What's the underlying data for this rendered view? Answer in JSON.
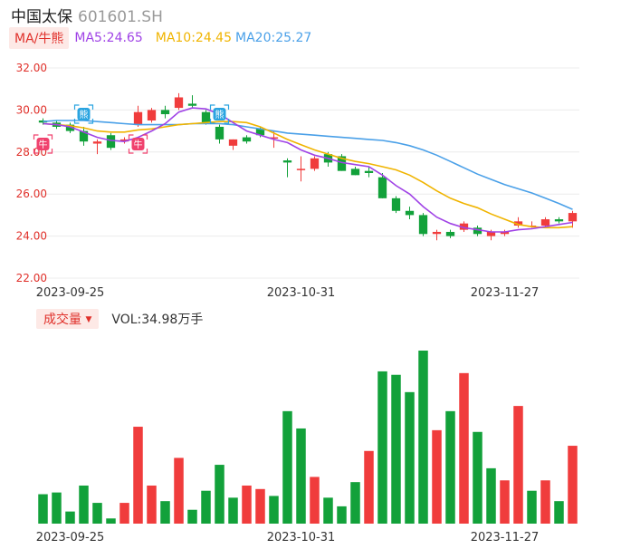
{
  "header": {
    "name": "中国太保",
    "code": "601601.SH"
  },
  "ma_bar": {
    "tag": "MA/牛熊",
    "ma5": "MA5:24.65",
    "ma10": "MA10:24.45",
    "ma20": "MA20:25.27"
  },
  "volume_bar": {
    "tag": "成交量",
    "arrow": "▼",
    "value": "VOL:34.98万手"
  },
  "colors": {
    "up": "#f03c3c",
    "down": "#12a13a",
    "ma5": "#a043e6",
    "ma10": "#f0b400",
    "ma20": "#4aa0e8",
    "grid": "#ececec",
    "axis_label": "#e0302a"
  },
  "chart_data": [
    {
      "type": "candlestick",
      "y_ticks": [
        "32.00",
        "30.00",
        "28.00",
        "26.00",
        "24.00",
        "22.00"
      ],
      "ylim": [
        22,
        32
      ],
      "x_tick_labels": [
        {
          "index": 2,
          "label": "2023-09-25"
        },
        {
          "index": 19,
          "label": "2023-10-31"
        },
        {
          "index": 34,
          "label": "2023-11-27"
        }
      ],
      "markers": [
        {
          "index": 0,
          "label": "牛",
          "type": "bull"
        },
        {
          "index": 3,
          "label": "熊",
          "type": "bear"
        },
        {
          "index": 7,
          "label": "牛",
          "type": "bull"
        },
        {
          "index": 13,
          "label": "熊",
          "type": "bear"
        }
      ],
      "candles": [
        {
          "o": 29.5,
          "h": 29.6,
          "l": 29.3,
          "c": 29.4
        },
        {
          "o": 29.4,
          "h": 29.5,
          "l": 29.1,
          "c": 29.2
        },
        {
          "o": 29.3,
          "h": 29.4,
          "l": 28.9,
          "c": 29.0
        },
        {
          "o": 29.0,
          "h": 29.2,
          "l": 28.3,
          "c": 28.5
        },
        {
          "o": 28.4,
          "h": 28.6,
          "l": 27.9,
          "c": 28.5
        },
        {
          "o": 28.8,
          "h": 28.9,
          "l": 28.1,
          "c": 28.2
        },
        {
          "o": 28.5,
          "h": 28.7,
          "l": 28.4,
          "c": 28.6
        },
        {
          "o": 29.3,
          "h": 30.2,
          "l": 29.2,
          "c": 29.9
        },
        {
          "o": 29.5,
          "h": 30.1,
          "l": 29.4,
          "c": 30.0
        },
        {
          "o": 30.0,
          "h": 30.2,
          "l": 29.6,
          "c": 29.8
        },
        {
          "o": 30.1,
          "h": 30.8,
          "l": 30.0,
          "c": 30.6
        },
        {
          "o": 30.3,
          "h": 30.7,
          "l": 30.1,
          "c": 30.2
        },
        {
          "o": 29.9,
          "h": 30.0,
          "l": 29.3,
          "c": 29.4
        },
        {
          "o": 29.2,
          "h": 29.3,
          "l": 28.4,
          "c": 28.6
        },
        {
          "o": 28.3,
          "h": 28.6,
          "l": 28.1,
          "c": 28.6
        },
        {
          "o": 28.7,
          "h": 28.8,
          "l": 28.4,
          "c": 28.5
        },
        {
          "o": 29.1,
          "h": 29.2,
          "l": 28.7,
          "c": 28.8
        },
        {
          "o": 28.7,
          "h": 29.0,
          "l": 28.2,
          "c": 28.7
        },
        {
          "o": 27.6,
          "h": 27.7,
          "l": 26.8,
          "c": 27.5
        },
        {
          "o": 27.2,
          "h": 27.8,
          "l": 26.6,
          "c": 27.2
        },
        {
          "o": 27.2,
          "h": 27.8,
          "l": 27.1,
          "c": 27.7
        },
        {
          "o": 27.9,
          "h": 28.0,
          "l": 27.3,
          "c": 27.5
        },
        {
          "o": 27.8,
          "h": 27.9,
          "l": 27.1,
          "c": 27.1
        },
        {
          "o": 27.2,
          "h": 27.3,
          "l": 26.9,
          "c": 26.9
        },
        {
          "o": 27.1,
          "h": 27.3,
          "l": 26.8,
          "c": 27.0
        },
        {
          "o": 26.8,
          "h": 27.0,
          "l": 25.8,
          "c": 25.8
        },
        {
          "o": 25.8,
          "h": 25.9,
          "l": 25.1,
          "c": 25.2
        },
        {
          "o": 25.2,
          "h": 25.4,
          "l": 24.8,
          "c": 25.0
        },
        {
          "o": 25.0,
          "h": 25.1,
          "l": 24.0,
          "c": 24.1
        },
        {
          "o": 24.1,
          "h": 24.3,
          "l": 23.8,
          "c": 24.2
        },
        {
          "o": 24.2,
          "h": 24.3,
          "l": 23.9,
          "c": 24.0
        },
        {
          "o": 24.3,
          "h": 24.7,
          "l": 24.2,
          "c": 24.6
        },
        {
          "o": 24.4,
          "h": 24.5,
          "l": 24.0,
          "c": 24.1
        },
        {
          "o": 24.0,
          "h": 24.3,
          "l": 23.8,
          "c": 24.2
        },
        {
          "o": 24.1,
          "h": 24.3,
          "l": 24.0,
          "c": 24.2
        },
        {
          "o": 24.5,
          "h": 24.9,
          "l": 24.4,
          "c": 24.7
        },
        {
          "o": 24.5,
          "h": 24.7,
          "l": 24.4,
          "c": 24.5
        },
        {
          "o": 24.5,
          "h": 24.9,
          "l": 24.4,
          "c": 24.8
        },
        {
          "o": 24.8,
          "h": 24.9,
          "l": 24.6,
          "c": 24.7
        },
        {
          "o": 24.7,
          "h": 25.2,
          "l": 24.4,
          "c": 25.1
        }
      ],
      "ma5": [
        29.35,
        29.3,
        29.2,
        28.95,
        28.7,
        28.55,
        28.5,
        28.7,
        29.0,
        29.35,
        29.9,
        30.1,
        30.05,
        29.8,
        29.4,
        29.0,
        28.8,
        28.6,
        28.45,
        28.1,
        27.85,
        27.7,
        27.5,
        27.4,
        27.3,
        26.9,
        26.4,
        26.0,
        25.4,
        24.9,
        24.6,
        24.4,
        24.3,
        24.2,
        24.2,
        24.3,
        24.35,
        24.45,
        24.55,
        24.65
      ],
      "ma10": [
        29.35,
        29.3,
        29.25,
        29.15,
        29.0,
        28.95,
        28.95,
        29.05,
        29.1,
        29.2,
        29.3,
        29.35,
        29.4,
        29.45,
        29.45,
        29.4,
        29.2,
        28.9,
        28.6,
        28.35,
        28.1,
        27.9,
        27.7,
        27.55,
        27.45,
        27.3,
        27.15,
        26.9,
        26.55,
        26.15,
        25.8,
        25.55,
        25.35,
        25.05,
        24.8,
        24.55,
        24.45,
        24.4,
        24.4,
        24.45
      ],
      "ma20": [
        29.45,
        29.5,
        29.5,
        29.5,
        29.45,
        29.4,
        29.35,
        29.3,
        29.3,
        29.3,
        29.3,
        29.35,
        29.35,
        29.35,
        29.3,
        29.2,
        29.1,
        29.0,
        28.9,
        28.85,
        28.8,
        28.75,
        28.7,
        28.65,
        28.6,
        28.55,
        28.45,
        28.3,
        28.1,
        27.85,
        27.55,
        27.25,
        26.95,
        26.7,
        26.45,
        26.25,
        26.05,
        25.8,
        25.55,
        25.27
      ]
    },
    {
      "type": "bar",
      "name": "成交量",
      "x_tick_labels": [
        {
          "index": 2,
          "label": "2023-09-25"
        },
        {
          "index": 19,
          "label": "2023-10-31"
        },
        {
          "index": 34,
          "label": "2023-11-27"
        }
      ],
      "ylim": [
        0,
        100
      ],
      "volumes": [
        17,
        18,
        7,
        22,
        12,
        3,
        12,
        56,
        22,
        13,
        38,
        8,
        19,
        34,
        15,
        22,
        20,
        16,
        65,
        55,
        27,
        15,
        10,
        24,
        42,
        88,
        86,
        76,
        100,
        54,
        65,
        87,
        53,
        32,
        25,
        68,
        19,
        25,
        13,
        45
      ],
      "up": [
        false,
        false,
        false,
        false,
        false,
        false,
        true,
        true,
        true,
        false,
        true,
        false,
        false,
        false,
        false,
        true,
        true,
        false,
        false,
        false,
        true,
        false,
        false,
        false,
        true,
        false,
        false,
        false,
        false,
        true,
        false,
        true,
        false,
        false,
        true,
        true,
        false,
        true,
        false,
        true
      ]
    }
  ]
}
